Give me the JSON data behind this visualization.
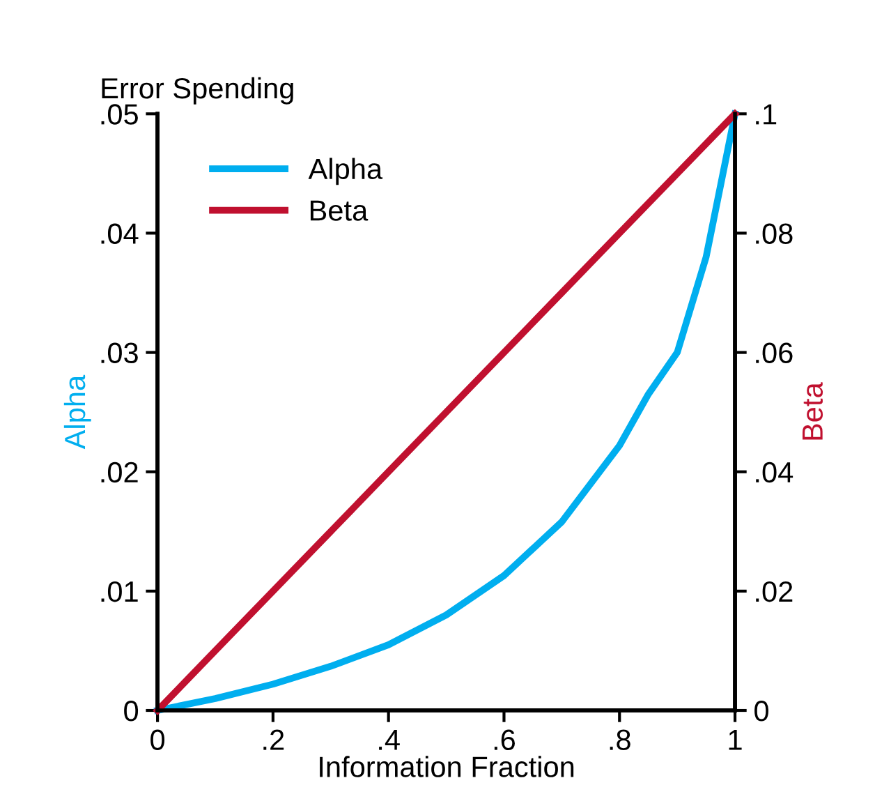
{
  "chart_data": {
    "type": "line",
    "title": "Error Spending",
    "xlabel": "Information Fraction",
    "ylabel": "Alpha",
    "y2label": "Beta",
    "x": [
      0,
      0.1,
      0.2,
      0.3,
      0.4,
      0.5,
      0.6,
      0.7,
      0.8,
      0.85,
      0.9,
      0.95,
      1
    ],
    "series": [
      {
        "name": "Alpha",
        "color": "#00aeef",
        "values": [
          0,
          0.001,
          0.0022,
          0.0037,
          0.0055,
          0.008,
          0.0113,
          0.0158,
          0.0222,
          0.0265,
          0.03,
          0.038,
          0.05
        ]
      },
      {
        "name": "Beta",
        "color": "#c0102f",
        "axis": "y2",
        "values": [
          0,
          0.01,
          0.02,
          0.03,
          0.04,
          0.05,
          0.06,
          0.07,
          0.08,
          0.085,
          0.09,
          0.095,
          0.1
        ]
      }
    ],
    "xlim": [
      0,
      1
    ],
    "xticks": [
      0,
      {
        "value": 0.2,
        "label": ".2"
      },
      {
        "value": 0.4,
        "label": ".4"
      },
      {
        "value": 0.6,
        "label": ".6"
      },
      {
        "value": 0.8,
        "label": ".8"
      },
      1
    ],
    "ylim": [
      0,
      0.05
    ],
    "yticks": [
      0,
      {
        "value": 0.01,
        "label": ".01"
      },
      {
        "value": 0.02,
        "label": ".02"
      },
      {
        "value": 0.03,
        "label": ".03"
      },
      {
        "value": 0.04,
        "label": ".04"
      },
      {
        "value": 0.05,
        "label": ".05"
      }
    ],
    "y2lim": [
      0,
      0.1
    ],
    "y2ticks": [
      0,
      {
        "value": 0.02,
        "label": ".02"
      },
      {
        "value": 0.04,
        "label": ".04"
      },
      {
        "value": 0.06,
        "label": ".06"
      },
      {
        "value": 0.08,
        "label": ".08"
      },
      {
        "value": 0.1,
        "label": ".1"
      }
    ],
    "legend": "top left",
    "grid": false,
    "marker": "none",
    "line_style": "solid"
  }
}
